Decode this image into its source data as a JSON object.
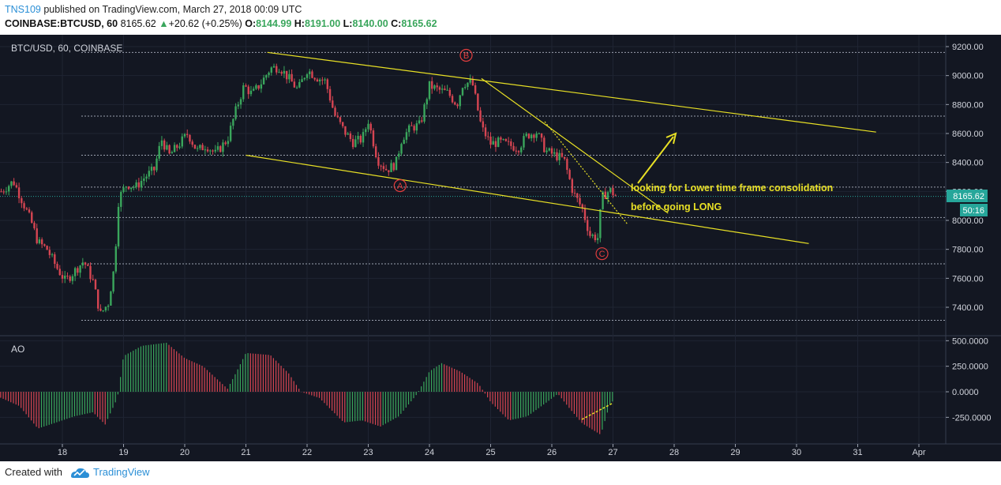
{
  "header": {
    "author": "TNS109",
    "published": "published on TradingView.com, March 27, 2018 00:09 UTC",
    "symbol": "COINBASE:BTCUSD, 60",
    "last": "8165.62",
    "change_arrow": "▲",
    "change": "+20.62 (+0.25%)",
    "o_label": "O:",
    "o": "8144.99",
    "h_label": "H:",
    "h": "8191.00",
    "l_label": "L:",
    "l": "8140.00",
    "c_label": "C:",
    "c": "8165.62"
  },
  "main": {
    "pane_label": "BTC/USD, 60, COINBASE",
    "price_badge": "8165.62",
    "countdown_badge": "50:16",
    "annotation_line1": "looking for Lower time frame consolidation",
    "annotation_line2": "before going LONG",
    "wave_labels": [
      "A",
      "B",
      "C"
    ]
  },
  "indicator": {
    "label": "AO"
  },
  "footer": {
    "created_with": "Created with",
    "brand": "TradingView"
  },
  "colors": {
    "background": "#131722",
    "up": "#3aa65c",
    "down": "#d64552",
    "annotation": "#e8e025",
    "wave_label": "#e33e3e",
    "price_badge": "#26a69a"
  },
  "chart_data": [
    {
      "type": "candlestick",
      "title": "BTC/USD, 60, COINBASE",
      "x_tick_labels": [
        "18",
        "19",
        "20",
        "21",
        "22",
        "23",
        "24",
        "25",
        "26",
        "27",
        "28",
        "29",
        "30",
        "31",
        "Apr"
      ],
      "y_tick_labels": [
        "9200.00",
        "9000.00",
        "8800.00",
        "8600.00",
        "8400.00",
        "8200.00",
        "8000.00",
        "7800.00",
        "7600.00",
        "7400.00"
      ],
      "ylim": [
        7300,
        9250
      ],
      "last_price": 8165.62,
      "close_path": [
        [
          17.0,
          8200
        ],
        [
          17.2,
          8270
        ],
        [
          17.35,
          8130
        ],
        [
          17.5,
          7980
        ],
        [
          17.6,
          7850
        ],
        [
          17.75,
          7800
        ],
        [
          17.9,
          7680
        ],
        [
          18.05,
          7580
        ],
        [
          18.2,
          7650
        ],
        [
          18.35,
          7720
        ],
        [
          18.5,
          7580
        ],
        [
          18.62,
          7350
        ],
        [
          18.75,
          7430
        ],
        [
          18.85,
          7680
        ],
        [
          18.92,
          8150
        ],
        [
          19.05,
          8250
        ],
        [
          19.2,
          8230
        ],
        [
          19.35,
          8300
        ],
        [
          19.5,
          8350
        ],
        [
          19.62,
          8560
        ],
        [
          19.75,
          8450
        ],
        [
          19.9,
          8520
        ],
        [
          20.05,
          8600
        ],
        [
          20.2,
          8480
        ],
        [
          20.35,
          8520
        ],
        [
          20.5,
          8460
        ],
        [
          20.7,
          8560
        ],
        [
          20.85,
          8780
        ],
        [
          20.97,
          8930
        ],
        [
          21.1,
          8870
        ],
        [
          21.25,
          8950
        ],
        [
          21.4,
          9050
        ],
        [
          21.55,
          9060
        ],
        [
          21.7,
          8980
        ],
        [
          21.85,
          8900
        ],
        [
          22.0,
          9040
        ],
        [
          22.15,
          8990
        ],
        [
          22.3,
          8960
        ],
        [
          22.45,
          8730
        ],
        [
          22.6,
          8620
        ],
        [
          22.75,
          8540
        ],
        [
          22.9,
          8560
        ],
        [
          23.0,
          8690
        ],
        [
          23.15,
          8420
        ],
        [
          23.3,
          8350
        ],
        [
          23.45,
          8390
        ],
        [
          23.55,
          8570
        ],
        [
          23.7,
          8640
        ],
        [
          23.85,
          8660
        ],
        [
          24.0,
          8930
        ],
        [
          24.15,
          8900
        ],
        [
          24.3,
          8880
        ],
        [
          24.45,
          8800
        ],
        [
          24.55,
          8950
        ],
        [
          24.7,
          8950
        ],
        [
          24.85,
          8640
        ],
        [
          25.0,
          8530
        ],
        [
          25.15,
          8540
        ],
        [
          25.3,
          8520
        ],
        [
          25.45,
          8500
        ],
        [
          25.6,
          8590
        ],
        [
          25.75,
          8610
        ],
        [
          25.9,
          8480
        ],
        [
          26.05,
          8450
        ],
        [
          26.2,
          8420
        ],
        [
          26.35,
          8190
        ],
        [
          26.5,
          8080
        ],
        [
          26.62,
          7900
        ],
        [
          26.75,
          7880
        ],
        [
          26.82,
          8160
        ],
        [
          26.95,
          8210
        ],
        [
          27.05,
          8166
        ]
      ],
      "trendlines": [
        {
          "from": [
            21.35,
            9160
          ],
          "to": [
            31.3,
            8610
          ]
        },
        {
          "from": [
            21.0,
            8450
          ],
          "to": [
            30.2,
            7840
          ]
        },
        {
          "from": [
            24.85,
            8980
          ],
          "to": [
            27.9,
            8050
          ]
        }
      ],
      "annotations": [
        {
          "label": "A",
          "x": 23.52,
          "y": 8240
        },
        {
          "label": "B",
          "x": 24.6,
          "y": 9140
        },
        {
          "label": "C",
          "x": 26.82,
          "y": 7770
        }
      ],
      "horizontal_levels": [
        9160,
        8720,
        8450,
        8230,
        8020,
        7700,
        7310
      ]
    },
    {
      "type": "histogram",
      "title": "AO",
      "y_tick_labels": [
        "500.0000",
        "250.0000",
        "0.0000",
        "-250.0000"
      ],
      "ylim": [
        -430,
        520
      ],
      "envelope": [
        [
          16.7,
          0
        ],
        [
          17.0,
          -60
        ],
        [
          17.3,
          -140
        ],
        [
          17.6,
          -360
        ],
        [
          17.9,
          -300
        ],
        [
          18.2,
          -240
        ],
        [
          18.5,
          -200
        ],
        [
          18.7,
          -320
        ],
        [
          18.9,
          -60
        ],
        [
          19.0,
          350
        ],
        [
          19.3,
          450
        ],
        [
          19.7,
          480
        ],
        [
          20.0,
          330
        ],
        [
          20.3,
          250
        ],
        [
          20.7,
          30
        ],
        [
          20.85,
          200
        ],
        [
          21.0,
          380
        ],
        [
          21.4,
          360
        ],
        [
          21.7,
          180
        ],
        [
          21.9,
          0
        ],
        [
          22.2,
          -60
        ],
        [
          22.6,
          -300
        ],
        [
          22.9,
          -280
        ],
        [
          23.2,
          -340
        ],
        [
          23.5,
          -240
        ],
        [
          23.8,
          -20
        ],
        [
          24.0,
          200
        ],
        [
          24.2,
          280
        ],
        [
          24.5,
          200
        ],
        [
          24.8,
          80
        ],
        [
          25.0,
          -100
        ],
        [
          25.3,
          -280
        ],
        [
          25.6,
          -240
        ],
        [
          25.9,
          -110
        ],
        [
          26.1,
          -20
        ],
        [
          26.3,
          -170
        ],
        [
          26.5,
          -310
        ],
        [
          26.8,
          -420
        ],
        [
          26.95,
          -120
        ],
        [
          27.0,
          -90
        ]
      ]
    }
  ]
}
